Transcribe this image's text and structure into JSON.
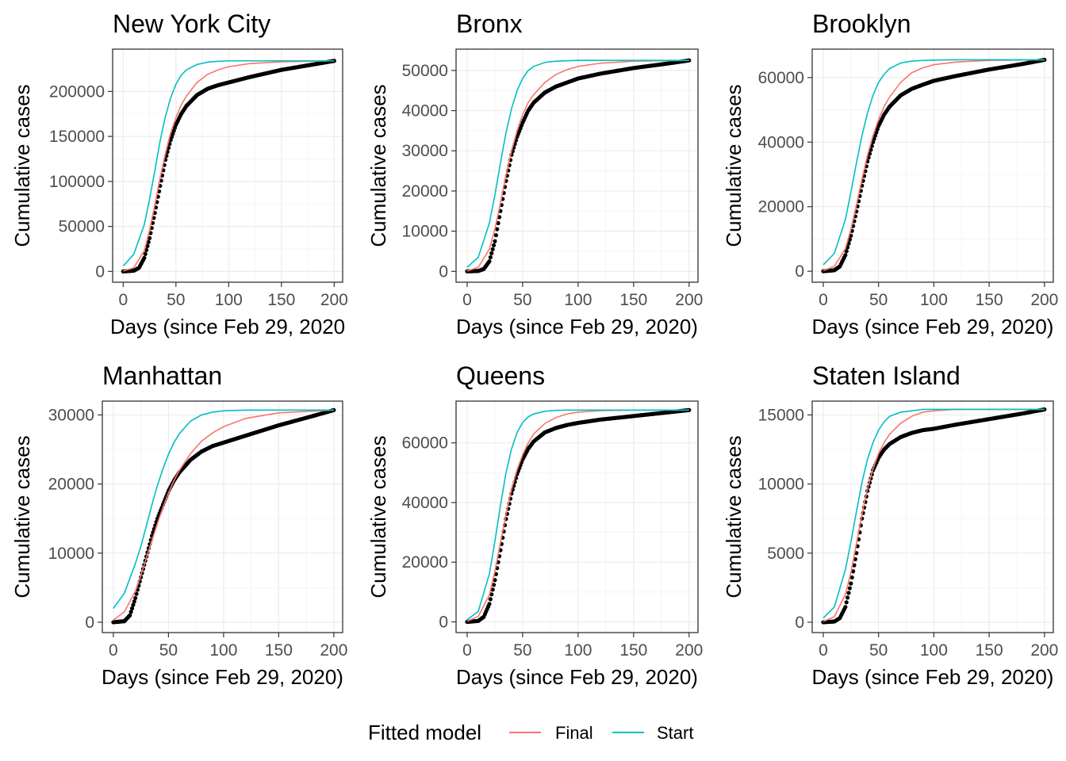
{
  "chart_data": [
    {
      "type": "line",
      "title": "New York City",
      "xlabel": "Days (since Feb 29, 2020",
      "ylabel": "Cumulative cases",
      "xlim": [
        -10,
        208
      ],
      "ylim": [
        -12000,
        247000
      ],
      "xticks": [
        0,
        50,
        100,
        150,
        200
      ],
      "xtick_labels": [
        "0",
        "50",
        "100",
        "150",
        "200"
      ],
      "yticks": [
        0,
        50000,
        100000,
        150000,
        200000
      ],
      "ytick_labels": [
        "0",
        "50000",
        "100000",
        "150000",
        "200000"
      ],
      "grid": true,
      "observed": {
        "x": [
          0,
          10,
          15,
          20,
          25,
          30,
          35,
          40,
          45,
          50,
          55,
          60,
          70,
          80,
          90,
          100,
          120,
          150,
          180,
          200
        ],
        "y": [
          0,
          800,
          4000,
          15000,
          37000,
          65000,
          95000,
          124000,
          146000,
          163000,
          175000,
          184000,
          196000,
          203000,
          207000,
          210000,
          216000,
          224000,
          230000,
          234000
        ]
      },
      "series": [
        {
          "name": "Final",
          "x": [
            0,
            10,
            20,
            25,
            30,
            35,
            40,
            45,
            50,
            55,
            60,
            70,
            80,
            90,
            100,
            120,
            150,
            200
          ],
          "y": [
            400,
            4000,
            23000,
            46000,
            74000,
            104000,
            131000,
            154000,
            171000,
            185000,
            195000,
            210000,
            219000,
            224000,
            227500,
            231000,
            233000,
            234000
          ]
        },
        {
          "name": "Start",
          "x": [
            0,
            10,
            20,
            25,
            30,
            35,
            40,
            45,
            50,
            55,
            60,
            70,
            80,
            90,
            100,
            120,
            150,
            200
          ],
          "y": [
            6000,
            19000,
            52000,
            80000,
            112000,
            145000,
            172000,
            193000,
            208000,
            218000,
            224000,
            230000,
            232500,
            233500,
            234000,
            234000,
            234000,
            234000
          ]
        }
      ]
    },
    {
      "type": "line",
      "title": "Bronx",
      "xlabel": "Days (since Feb 29, 2020)",
      "ylabel": "Cumulative cases",
      "xlim": [
        -10,
        208
      ],
      "ylim": [
        -2700,
        55300
      ],
      "xticks": [
        0,
        50,
        100,
        150,
        200
      ],
      "xtick_labels": [
        "0",
        "50",
        "100",
        "150",
        "200"
      ],
      "yticks": [
        0,
        10000,
        20000,
        30000,
        40000,
        50000
      ],
      "ytick_labels": [
        "0",
        "10000",
        "20000",
        "30000",
        "40000",
        "50000"
      ],
      "grid": true,
      "observed": {
        "x": [
          0,
          10,
          15,
          20,
          25,
          30,
          35,
          40,
          45,
          50,
          55,
          60,
          70,
          80,
          90,
          100,
          120,
          150,
          180,
          200
        ],
        "y": [
          0,
          100,
          600,
          2500,
          7500,
          15000,
          22500,
          29000,
          33500,
          37000,
          40000,
          42000,
          44500,
          46000,
          47000,
          48000,
          49200,
          50600,
          51700,
          52500
        ]
      },
      "series": [
        {
          "name": "Final",
          "x": [
            0,
            10,
            20,
            25,
            30,
            35,
            40,
            45,
            50,
            55,
            60,
            70,
            80,
            90,
            100,
            120,
            150,
            200
          ],
          "y": [
            100,
            1000,
            5500,
            10500,
            17000,
            24000,
            30000,
            35000,
            39000,
            42000,
            44000,
            47000,
            49000,
            50200,
            51000,
            51800,
            52300,
            52500
          ]
        },
        {
          "name": "Start",
          "x": [
            0,
            10,
            20,
            25,
            30,
            35,
            40,
            45,
            50,
            55,
            60,
            70,
            80,
            90,
            100,
            120,
            150,
            200
          ],
          "y": [
            1000,
            3500,
            12000,
            19000,
            27000,
            34500,
            40500,
            45000,
            48000,
            50000,
            51000,
            52000,
            52300,
            52400,
            52500,
            52500,
            52500,
            52500
          ]
        }
      ]
    },
    {
      "type": "line",
      "title": "Brooklyn",
      "xlabel": "Days (since Feb 29, 2020)",
      "ylabel": "Cumulative cases",
      "xlim": [
        -10,
        208
      ],
      "ylim": [
        -3400,
        68800
      ],
      "xticks": [
        0,
        50,
        100,
        150,
        200
      ],
      "xtick_labels": [
        "0",
        "50",
        "100",
        "150",
        "200"
      ],
      "yticks": [
        0,
        20000,
        40000,
        60000
      ],
      "ytick_labels": [
        "0",
        "20000",
        "40000",
        "60000"
      ],
      "grid": true,
      "observed": {
        "x": [
          0,
          10,
          15,
          20,
          25,
          30,
          35,
          40,
          45,
          50,
          55,
          60,
          70,
          80,
          90,
          100,
          120,
          150,
          180,
          200
        ],
        "y": [
          0,
          300,
          1500,
          5000,
          11000,
          18500,
          26500,
          34000,
          40000,
          45000,
          48500,
          51000,
          54500,
          56500,
          57800,
          59000,
          60500,
          62500,
          64200,
          65500
        ]
      },
      "series": [
        {
          "name": "Final",
          "x": [
            0,
            10,
            20,
            25,
            30,
            35,
            40,
            45,
            50,
            55,
            60,
            70,
            80,
            90,
            100,
            120,
            150,
            200
          ],
          "y": [
            200,
            1500,
            7000,
            13000,
            20500,
            28500,
            36000,
            42000,
            47000,
            51000,
            54000,
            58500,
            61500,
            63000,
            64000,
            64800,
            65300,
            65500
          ]
        },
        {
          "name": "Start",
          "x": [
            0,
            10,
            20,
            25,
            30,
            35,
            40,
            45,
            50,
            55,
            60,
            70,
            80,
            90,
            100,
            120,
            150,
            200
          ],
          "y": [
            2000,
            5500,
            16000,
            24500,
            33500,
            42000,
            49000,
            54500,
            58500,
            61000,
            62800,
            64500,
            65100,
            65300,
            65400,
            65500,
            65500,
            65500
          ]
        }
      ]
    },
    {
      "type": "line",
      "title": "Manhattan",
      "xlabel": "Days (since Feb 29, 2020)",
      "ylabel": "Cumulative cases",
      "xlim": [
        -10,
        208
      ],
      "ylim": [
        -1500,
        32000
      ],
      "xticks": [
        0,
        50,
        100,
        150,
        200
      ],
      "xtick_labels": [
        "0",
        "50",
        "100",
        "150",
        "200"
      ],
      "yticks": [
        0,
        10000,
        20000,
        30000
      ],
      "ytick_labels": [
        "0",
        "10000",
        "20000",
        "30000"
      ],
      "grid": true,
      "observed": {
        "x": [
          0,
          10,
          15,
          20,
          25,
          30,
          35,
          40,
          45,
          50,
          55,
          60,
          70,
          80,
          90,
          100,
          120,
          150,
          180,
          200
        ],
        "y": [
          0,
          150,
          1000,
          3500,
          6500,
          9500,
          12500,
          15000,
          17000,
          19000,
          20500,
          21700,
          23500,
          24700,
          25500,
          26000,
          27000,
          28500,
          29800,
          30700
        ]
      },
      "series": [
        {
          "name": "Final",
          "x": [
            0,
            10,
            20,
            25,
            30,
            35,
            40,
            45,
            50,
            55,
            60,
            70,
            80,
            90,
            100,
            120,
            150,
            200
          ],
          "y": [
            300,
            1500,
            4500,
            6800,
            9300,
            11800,
            14300,
            16600,
            18700,
            20500,
            22000,
            24400,
            26200,
            27400,
            28300,
            29500,
            30300,
            30700
          ]
        },
        {
          "name": "Start",
          "x": [
            0,
            10,
            20,
            25,
            30,
            35,
            40,
            45,
            50,
            55,
            60,
            70,
            80,
            90,
            100,
            120,
            150,
            200
          ],
          "y": [
            2000,
            4200,
            8500,
            11000,
            14000,
            17000,
            19800,
            22200,
            24300,
            26000,
            27300,
            29100,
            30000,
            30400,
            30600,
            30700,
            30700,
            30700
          ]
        }
      ]
    },
    {
      "type": "line",
      "title": "Queens",
      "xlabel": "Days (since Feb 29, 2020)",
      "ylabel": "Cumulative cases",
      "xlim": [
        -10,
        208
      ],
      "ylim": [
        -3600,
        74000
      ],
      "xticks": [
        0,
        50,
        100,
        150,
        200
      ],
      "xtick_labels": [
        "0",
        "50",
        "100",
        "150",
        "200"
      ],
      "yticks": [
        0,
        20000,
        40000,
        60000
      ],
      "ytick_labels": [
        "0",
        "20000",
        "40000",
        "60000"
      ],
      "grid": true,
      "observed": {
        "x": [
          0,
          10,
          15,
          20,
          25,
          30,
          35,
          40,
          45,
          50,
          55,
          60,
          70,
          80,
          90,
          100,
          120,
          150,
          180,
          200
        ],
        "y": [
          0,
          300,
          1700,
          6000,
          14000,
          24000,
          34500,
          43000,
          49500,
          54500,
          58000,
          60500,
          63500,
          65000,
          66000,
          66700,
          67800,
          69000,
          70200,
          71000
        ]
      },
      "series": [
        {
          "name": "Final",
          "x": [
            0,
            10,
            20,
            25,
            30,
            35,
            40,
            45,
            50,
            55,
            60,
            70,
            80,
            90,
            100,
            120,
            150,
            200
          ],
          "y": [
            200,
            1800,
            9000,
            17000,
            26500,
            36000,
            44500,
            51000,
            56000,
            60000,
            63000,
            66500,
            68500,
            69700,
            70300,
            70800,
            71000,
            71000
          ]
        },
        {
          "name": "Start",
          "x": [
            0,
            10,
            20,
            25,
            30,
            35,
            40,
            45,
            50,
            55,
            60,
            70,
            80,
            90,
            100,
            120,
            150,
            200
          ],
          "y": [
            700,
            3500,
            16000,
            27000,
            39000,
            50000,
            58000,
            63500,
            66800,
            68700,
            69700,
            70600,
            70900,
            71000,
            71000,
            71000,
            71000,
            71000
          ]
        }
      ]
    },
    {
      "type": "line",
      "title": "Staten Island",
      "xlabel": "Days (since Feb 29, 2020)",
      "ylabel": "Cumulative cases",
      "xlim": [
        -10,
        208
      ],
      "ylim": [
        -750,
        16000
      ],
      "xticks": [
        0,
        50,
        100,
        150,
        200
      ],
      "xtick_labels": [
        "0",
        "50",
        "100",
        "150",
        "200"
      ],
      "yticks": [
        0,
        5000,
        10000,
        15000
      ],
      "ytick_labels": [
        "0",
        "5000",
        "10000",
        "15000"
      ],
      "grid": true,
      "observed": {
        "x": [
          0,
          10,
          15,
          20,
          25,
          30,
          35,
          40,
          45,
          50,
          55,
          60,
          70,
          80,
          90,
          100,
          120,
          150,
          180,
          200
        ],
        "y": [
          0,
          50,
          300,
          1100,
          2800,
          5000,
          7500,
          9500,
          11000,
          11900,
          12500,
          12900,
          13400,
          13700,
          13900,
          14000,
          14300,
          14700,
          15100,
          15400
        ]
      },
      "series": [
        {
          "name": "Final",
          "x": [
            0,
            10,
            20,
            25,
            30,
            35,
            40,
            45,
            50,
            55,
            60,
            70,
            80,
            90,
            100,
            120,
            150,
            200
          ],
          "y": [
            50,
            400,
            2000,
            3600,
            5700,
            7800,
            9700,
            11100,
            12200,
            13000,
            13600,
            14400,
            14900,
            15200,
            15300,
            15400,
            15400,
            15400
          ]
        },
        {
          "name": "Start",
          "x": [
            0,
            10,
            20,
            25,
            30,
            35,
            40,
            45,
            50,
            55,
            60,
            70,
            80,
            90,
            100,
            120,
            150,
            200
          ],
          "y": [
            300,
            1100,
            3800,
            5800,
            8000,
            10100,
            11800,
            13000,
            13900,
            14500,
            14900,
            15200,
            15300,
            15400,
            15400,
            15400,
            15400,
            15400
          ]
        }
      ]
    }
  ],
  "legend": {
    "title": "Fitted model",
    "position": "bottom",
    "items": [
      {
        "name": "Final",
        "color": "#F8766D"
      },
      {
        "name": "Start",
        "color": "#00BFC4"
      }
    ]
  },
  "colors": {
    "observed": "#000000",
    "Final": "#F8766D",
    "Start": "#00BFC4"
  }
}
